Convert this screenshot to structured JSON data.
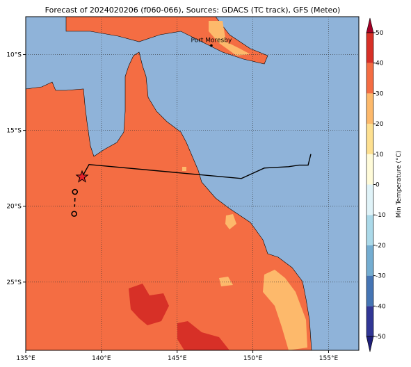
{
  "map": {
    "title": "Forecast of 2024020206 (f060-066), Sources: GDACS (TC track), GFS (Meteo)",
    "xlim": [
      135,
      157
    ],
    "ylim": [
      -29.5,
      -7.5
    ],
    "xticks": [
      {
        "value": 135,
        "label": "135°E"
      },
      {
        "value": 140,
        "label": "140°E"
      },
      {
        "value": 145,
        "label": "145°E"
      },
      {
        "value": 150,
        "label": "150°E"
      },
      {
        "value": 155,
        "label": "155°E"
      }
    ],
    "yticks": [
      {
        "value": -10,
        "label": "10°S"
      },
      {
        "value": -15,
        "label": "15°S"
      },
      {
        "value": -20,
        "label": "20°S"
      },
      {
        "value": -25,
        "label": "25°S"
      }
    ],
    "grid": true,
    "places": [
      {
        "name": "Port Moresby",
        "lon": 147.26,
        "lat": -9.4
      }
    ],
    "track": {
      "color": "#000000",
      "lon": [
        138.72,
        139.18,
        149.24,
        150.76,
        152.36,
        153.05,
        153.65,
        153.83
      ],
      "lat": [
        -18.07,
        -17.25,
        -18.17,
        -17.48,
        -17.39,
        -17.29,
        -17.29,
        -16.56
      ]
    },
    "current_position": {
      "lon": 138.72,
      "lat": -18.07,
      "color": "#e8202a"
    },
    "past_positions": {
      "lon": [
        138.25,
        138.2
      ],
      "lat": [
        -19.05,
        -20.5
      ]
    },
    "colorbar": {
      "label": "Min Temperature (°C)",
      "lim": [
        -50,
        50
      ],
      "ticks": [
        -50,
        -40,
        -30,
        -20,
        -10,
        0,
        10,
        20,
        30,
        40,
        50
      ],
      "colors": [
        "#313695",
        "#4575b4",
        "#74add1",
        "#abd9e9",
        "#e0f3f8",
        "#fffbd9",
        "#fee090",
        "#fdb96b",
        "#f46d43",
        "#d73027"
      ],
      "extend_colors": [
        "#1f1f7a",
        "#a50026"
      ]
    }
  }
}
